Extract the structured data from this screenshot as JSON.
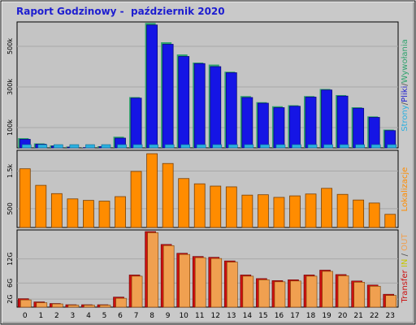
{
  "title": "Raport Godzinowy -  październik 2020",
  "colors": {
    "frame_bg": "#c9c9c9",
    "plot_bg": "#c4c4c4",
    "grid": "#a8a8a8",
    "pages": "#1515e5",
    "pages_dark": "#0a0a80",
    "files": "#2bb0e0",
    "hits": "#2fa36d",
    "visits": "#ff8c00",
    "visits_dark": "#a45800",
    "kb_in": "#cc1010",
    "kb_out": "#f0a050",
    "title": "#1d1dd0"
  },
  "legend": {
    "top": [
      {
        "text": "Strony",
        "color": "#2bb0e0"
      },
      {
        "text": "/",
        "color": "#555555"
      },
      {
        "text": "Pliki",
        "color": "#1d1dd0"
      },
      {
        "text": "/",
        "color": "#555555"
      },
      {
        "text": "Wywołania",
        "color": "#2fa36d"
      }
    ],
    "middle": [
      {
        "text": "Lokalizacje",
        "color": "#ff8c00"
      }
    ],
    "bottom": [
      {
        "text": "Transfer",
        "color": "#cc1010"
      },
      {
        "text": " IN",
        "color": "#c8c800"
      },
      {
        "text": " / ",
        "color": "#555555"
      },
      {
        "text": "OUT",
        "color": "#f0a050"
      }
    ]
  },
  "chart_data": [
    {
      "id": "hits-files-pages",
      "type": "bar",
      "categories": [
        "0",
        "1",
        "2",
        "3",
        "4",
        "5",
        "6",
        "7",
        "8",
        "9",
        "10",
        "11",
        "12",
        "13",
        "14",
        "15",
        "16",
        "17",
        "18",
        "19",
        "20",
        "21",
        "22",
        "23"
      ],
      "ylim": [
        0,
        620000
      ],
      "yticks": [
        100000,
        300000,
        500000
      ],
      "ytick_labels": [
        "100k",
        "300k",
        "500k"
      ],
      "series": [
        {
          "name": "Wywołania",
          "values": [
            48000,
            22000,
            12000,
            6000,
            2000,
            8000,
            55000,
            250000,
            615000,
            520000,
            460000,
            420000,
            410000,
            375000,
            255000,
            225000,
            205000,
            210000,
            255000,
            290000,
            260000,
            200000,
            155000,
            90000
          ]
        },
        {
          "name": "Pliki",
          "values": [
            42000,
            18000,
            9000,
            4000,
            1500,
            6000,
            48000,
            245000,
            605000,
            510000,
            450000,
            415000,
            400000,
            370000,
            248000,
            220000,
            198000,
            205000,
            250000,
            285000,
            255000,
            195000,
            150000,
            85000
          ]
        },
        {
          "name": "Strony",
          "values": [
            3000,
            2000,
            1500,
            1000,
            500,
            1000,
            4000,
            12000,
            15000,
            14000,
            13000,
            12000,
            12000,
            11000,
            9000,
            8000,
            7000,
            7000,
            8000,
            9000,
            9000,
            7000,
            5000,
            3000
          ]
        }
      ],
      "grid": true
    },
    {
      "id": "visits",
      "type": "bar",
      "categories": [
        "0",
        "1",
        "2",
        "3",
        "4",
        "5",
        "6",
        "7",
        "8",
        "9",
        "10",
        "11",
        "12",
        "13",
        "14",
        "15",
        "16",
        "17",
        "18",
        "19",
        "20",
        "21",
        "22",
        "23"
      ],
      "ylim": [
        0,
        2050
      ],
      "yticks": [
        500,
        1500
      ],
      "ytick_labels": [
        "500",
        "1.5k"
      ],
      "series": [
        {
          "name": "Lokalizacje",
          "values": [
            1560,
            1120,
            900,
            760,
            720,
            700,
            820,
            1490,
            1960,
            1700,
            1300,
            1160,
            1100,
            1080,
            860,
            870,
            800,
            840,
            890,
            1040,
            880,
            730,
            650,
            350
          ]
        }
      ],
      "grid": true
    },
    {
      "id": "kbytes",
      "type": "bar",
      "categories": [
        "0",
        "1",
        "2",
        "3",
        "4",
        "5",
        "6",
        "7",
        "8",
        "9",
        "10",
        "11",
        "12",
        "13",
        "14",
        "15",
        "16",
        "17",
        "18",
        "19",
        "20",
        "21",
        "22",
        "23"
      ],
      "ylim": [
        0,
        19200
      ],
      "yticks": [
        2000,
        6000,
        12000
      ],
      "ytick_labels": [
        "2G",
        "6G",
        "12G"
      ],
      "series": [
        {
          "name": "IN",
          "values": [
            2100,
            1300,
            900,
            600,
            600,
            600,
            2500,
            8000,
            18800,
            15600,
            13400,
            12600,
            12400,
            11500,
            8000,
            7100,
            6600,
            6800,
            8000,
            9200,
            8100,
            6500,
            5500,
            3200
          ]
        },
        {
          "name": "OUT",
          "values": [
            1800,
            1100,
            800,
            500,
            500,
            500,
            2200,
            7700,
            18500,
            15300,
            13100,
            12300,
            12100,
            11200,
            7700,
            6800,
            6300,
            6500,
            7700,
            8900,
            7800,
            6200,
            5200,
            2900
          ]
        }
      ],
      "grid": true
    }
  ]
}
